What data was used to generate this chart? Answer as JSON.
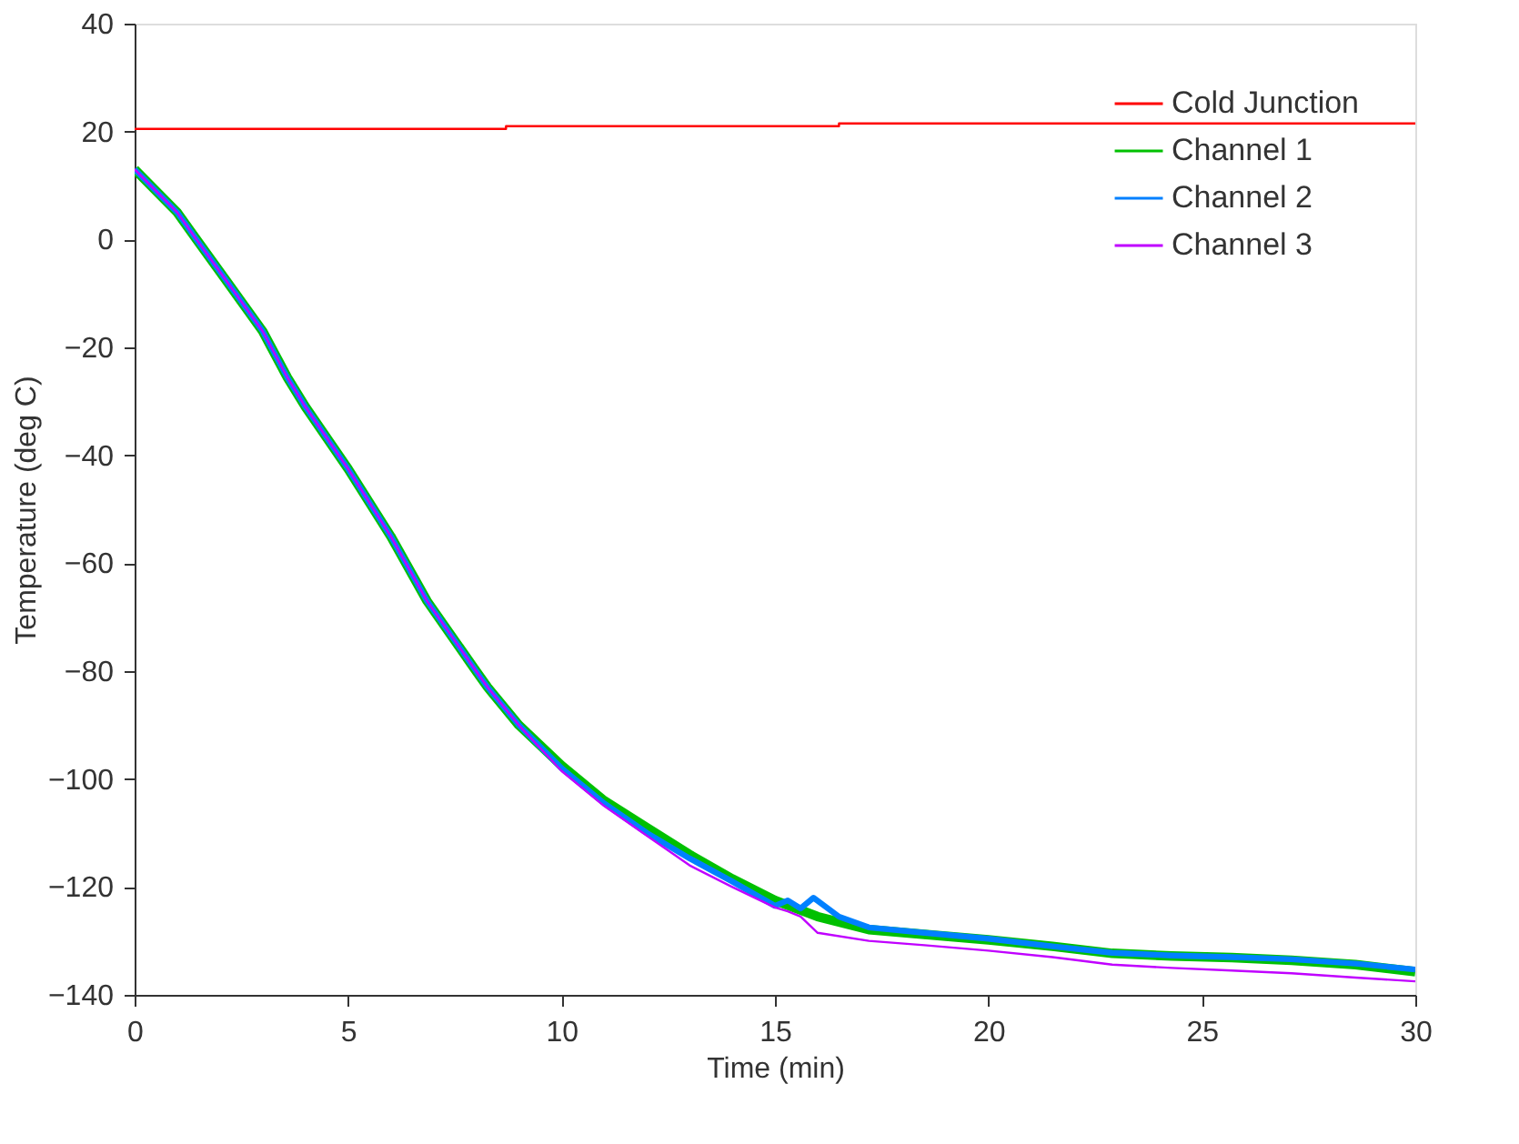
{
  "chart_data": {
    "type": "line",
    "xlabel": "Time (min)",
    "ylabel": "Temperature (deg C)",
    "xlim": [
      0,
      30
    ],
    "xticks": [
      0,
      5,
      10,
      15,
      20,
      25,
      30
    ],
    "ylim": [
      -140,
      40
    ],
    "yticks": [
      -140,
      -120,
      -100,
      -80,
      -60,
      -40,
      -20,
      0,
      20,
      40
    ],
    "grid": false,
    "legend": "top right",
    "marker": "none",
    "line_style": "solid",
    "series": [
      {
        "name": "Cold Junction",
        "color": "#ff0000",
        "x": [
          0,
          8.7,
          8.7,
          16.5,
          16.5,
          30
        ],
        "values": [
          20.5,
          20.5,
          21,
          21,
          21.5,
          21.5
        ]
      },
      {
        "name": "Channel 1",
        "color": "#00c000",
        "x": [
          0,
          1,
          1.45,
          2,
          3,
          3.58,
          4,
          5,
          6,
          6.85,
          8,
          8.27,
          9,
          10,
          11,
          12,
          13,
          14,
          15,
          16,
          17.2,
          18.5,
          20,
          21.5,
          22.9,
          24.3,
          25.7,
          27.1,
          28.6,
          30
        ],
        "values": [
          13,
          5,
          0,
          -6,
          -17,
          -25.6,
          -31,
          -42.5,
          -55,
          -67,
          -80,
          -83,
          -90,
          -97.5,
          -104,
          -109,
          -114,
          -118.5,
          -122.5,
          -125.5,
          -127.9,
          -128.8,
          -129.8,
          -131,
          -132.3,
          -132.8,
          -133.1,
          -133.6,
          -134.4,
          -135.7
        ]
      },
      {
        "name": "Channel 2",
        "color": "#0080ff",
        "x": [
          0,
          1,
          1.45,
          2,
          3,
          3.58,
          4,
          5,
          6,
          6.85,
          8,
          8.27,
          9,
          10,
          11,
          12,
          13,
          14,
          15,
          15.3,
          15.6,
          15.9,
          16.5,
          17.2,
          18.5,
          20,
          21.5,
          22.9,
          24.3,
          25.7,
          27.1,
          28.6,
          30
        ],
        "values": [
          13,
          5,
          0,
          -6,
          -17,
          -25.6,
          -31,
          -42.5,
          -55,
          -67,
          -80,
          -83,
          -90,
          -98,
          -104.5,
          -110,
          -114.7,
          -119,
          -123.5,
          -122.5,
          -124,
          -122,
          -125.5,
          -127.5,
          -128.5,
          -129.6,
          -131,
          -132.2,
          -132.7,
          -133,
          -133.4,
          -134.2,
          -135.3
        ]
      },
      {
        "name": "Channel 3",
        "color": "#c000ff",
        "x": [
          0,
          1,
          1.45,
          2,
          3,
          3.58,
          4,
          5,
          6,
          6.85,
          8,
          8.27,
          9,
          10,
          11,
          12,
          13,
          14,
          15,
          15.3,
          15.6,
          16,
          17.2,
          18.5,
          20,
          21.5,
          22.9,
          24.3,
          25.7,
          27.1,
          28.6,
          30
        ],
        "values": [
          13,
          5,
          0,
          -6,
          -17,
          -25.6,
          -31,
          -42.5,
          -55,
          -67,
          -80,
          -83,
          -90,
          -98.5,
          -105,
          -110.5,
          -116,
          -120,
          -123.8,
          -124.5,
          -125.5,
          -128.5,
          -130,
          -130.8,
          -131.8,
          -133,
          -134.4,
          -135,
          -135.5,
          -136,
          -136.8,
          -137.5
        ]
      }
    ]
  }
}
